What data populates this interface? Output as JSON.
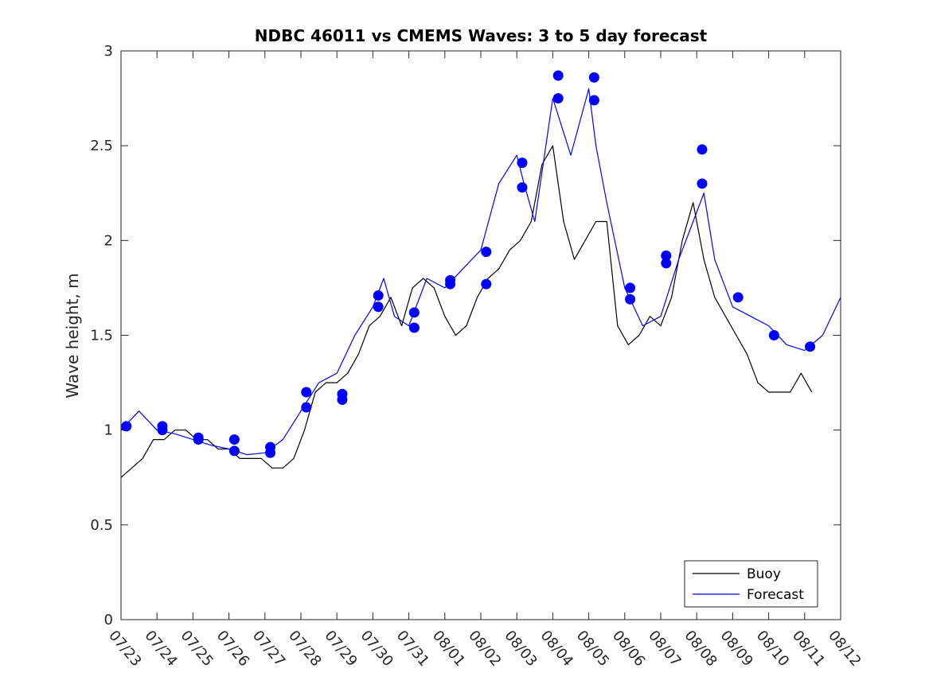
{
  "chart_data": {
    "type": "line",
    "title": "NDBC 46011 vs CMEMS Waves: 3 to 5 day forecast",
    "xlabel": "",
    "ylabel": "Wave height, m",
    "x_axis": {
      "type": "date",
      "start": "07/23",
      "end": "08/12"
    },
    "ylim": [
      0,
      3
    ],
    "y_ticks": [
      "0",
      "0.5",
      "1",
      "1.5",
      "2",
      "2.5",
      "3"
    ],
    "x_ticks": [
      "07/23",
      "07/24",
      "07/25",
      "07/26",
      "07/27",
      "07/28",
      "07/29",
      "07/30",
      "07/31",
      "08/01",
      "08/02",
      "08/03",
      "08/04",
      "08/05",
      "08/06",
      "08/07",
      "08/08",
      "08/09",
      "08/10",
      "08/11",
      "08/12"
    ],
    "legend": {
      "position": "bottom-right",
      "entries": [
        {
          "label": "Buoy",
          "color": "#000000"
        },
        {
          "label": "Forecast",
          "color": "#0000ff"
        }
      ]
    },
    "colors": {
      "buoy": "#000000",
      "forecast": "#0000ff"
    },
    "series": [
      {
        "name": "Buoy",
        "x_days": [
          0,
          0.3,
          0.6,
          0.9,
          1.2,
          1.5,
          1.8,
          2.1,
          2.4,
          2.7,
          3.0,
          3.3,
          3.6,
          3.9,
          4.2,
          4.5,
          4.8,
          5.1,
          5.4,
          5.7,
          6.0,
          6.3,
          6.6,
          6.9,
          7.2,
          7.5,
          7.8,
          8.1,
          8.4,
          8.7,
          9.0,
          9.3,
          9.6,
          9.9,
          10.2,
          10.5,
          10.8,
          11.1,
          11.4,
          11.7,
          12.0,
          12.3,
          12.6,
          12.9,
          13.2,
          13.5,
          13.8,
          14.1,
          14.4,
          14.7,
          15.0,
          15.3,
          15.6,
          15.9,
          16.2,
          16.5,
          16.8,
          17.1,
          17.4,
          17.7,
          18.0,
          18.3,
          18.6,
          18.9,
          19.2
        ],
        "values": [
          0.75,
          0.8,
          0.85,
          0.95,
          0.95,
          1.0,
          1.0,
          0.95,
          0.95,
          0.9,
          0.9,
          0.85,
          0.85,
          0.85,
          0.8,
          0.8,
          0.85,
          1.0,
          1.2,
          1.25,
          1.25,
          1.3,
          1.4,
          1.55,
          1.6,
          1.7,
          1.55,
          1.75,
          1.8,
          1.75,
          1.6,
          1.5,
          1.55,
          1.7,
          1.8,
          1.85,
          1.95,
          2.0,
          2.1,
          2.4,
          2.5,
          2.1,
          1.9,
          2.0,
          2.1,
          2.1,
          1.55,
          1.45,
          1.5,
          1.6,
          1.55,
          1.7,
          2.0,
          2.2,
          1.9,
          1.7,
          1.6,
          1.5,
          1.4,
          1.25,
          1.2,
          1.2,
          1.2,
          1.3,
          1.2
        ]
      },
      {
        "name": "Forecast",
        "x_days": [
          0,
          0.5,
          1.0,
          1.5,
          2.0,
          2.5,
          3.0,
          3.5,
          4.0,
          4.5,
          5.0,
          5.5,
          6.0,
          6.5,
          7.0,
          7.3,
          7.6,
          8.0,
          8.5,
          9.0,
          9.5,
          10.0,
          10.5,
          11.0,
          11.2,
          11.5,
          12.0,
          12.5,
          13.0,
          13.2,
          13.5,
          14.0,
          14.5,
          15.0,
          15.5,
          16.0,
          16.2,
          16.5,
          17.0,
          17.5,
          18.0,
          18.5,
          19.0,
          19.5,
          20.0
        ],
        "values": [
          1.0,
          1.1,
          1.0,
          0.98,
          0.95,
          0.92,
          0.9,
          0.87,
          0.88,
          0.95,
          1.1,
          1.25,
          1.3,
          1.5,
          1.65,
          1.8,
          1.6,
          1.55,
          1.8,
          1.75,
          1.85,
          1.95,
          2.3,
          2.45,
          2.3,
          2.1,
          2.75,
          2.45,
          2.8,
          2.5,
          2.2,
          1.75,
          1.55,
          1.6,
          1.9,
          2.15,
          2.25,
          1.9,
          1.65,
          1.6,
          1.55,
          1.45,
          1.42,
          1.5,
          1.7
        ]
      }
    ],
    "markers": {
      "x_days": [
        0.15,
        1.15,
        1.15,
        2.15,
        2.15,
        3.15,
        3.15,
        4.15,
        4.15,
        5.15,
        5.15,
        6.15,
        6.15,
        7.15,
        7.15,
        8.15,
        8.15,
        9.15,
        9.15,
        10.15,
        10.15,
        11.15,
        11.15,
        12.15,
        12.15,
        13.15,
        13.15,
        14.15,
        14.15,
        15.15,
        15.15,
        16.15,
        16.15,
        17.15,
        18.15,
        19.15
      ],
      "values": [
        1.02,
        1.02,
        1.0,
        0.96,
        0.95,
        0.95,
        0.89,
        0.91,
        0.88,
        1.2,
        1.12,
        1.19,
        1.16,
        1.71,
        1.65,
        1.62,
        1.54,
        1.79,
        1.77,
        1.94,
        1.77,
        2.41,
        2.28,
        2.87,
        2.75,
        2.86,
        2.74,
        1.75,
        1.69,
        1.92,
        1.88,
        2.48,
        2.3,
        1.7,
        1.5,
        1.44
      ]
    }
  }
}
